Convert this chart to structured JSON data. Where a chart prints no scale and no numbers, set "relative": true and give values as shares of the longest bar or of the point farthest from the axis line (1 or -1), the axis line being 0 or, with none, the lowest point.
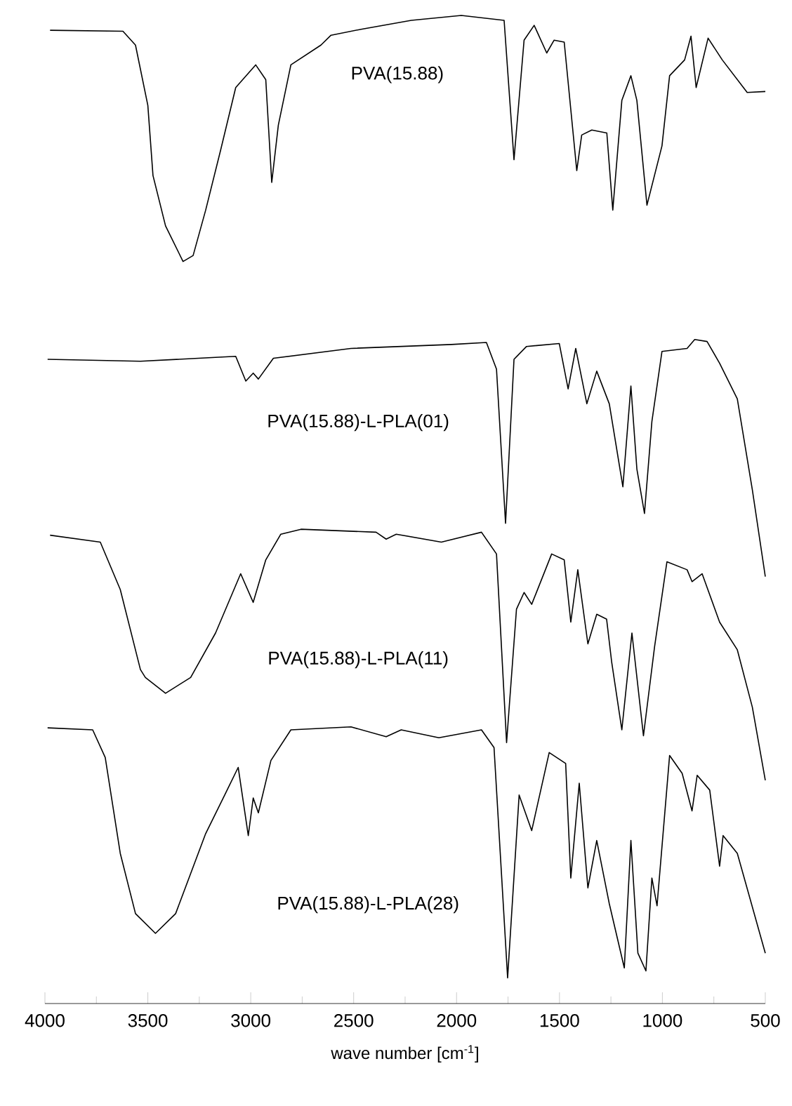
{
  "chart_data": {
    "type": "line",
    "relative": true,
    "xlabel": "wave number [cm$^{-1}$]",
    "xlim": [
      4000,
      500
    ],
    "xticks": [
      4000,
      3500,
      3000,
      2500,
      2000,
      1500,
      1000,
      500
    ],
    "series": [
      {
        "name": "PVA(15.88)",
        "color": "#000000",
        "x": [
          3975,
          3621,
          3560,
          3500,
          3475,
          3414,
          3329,
          3280,
          3219,
          3146,
          3073,
          2976,
          2927,
          2898,
          2866,
          2805,
          2659,
          2610,
          2464,
          2220,
          1977,
          1769,
          1721,
          1672,
          1623,
          1562,
          1526,
          1477,
          1416,
          1392,
          1343,
          1270,
          1241,
          1197,
          1153,
          1124,
          1075,
          1002,
          965,
          892,
          861,
          836,
          778,
          709,
          588,
          500
        ],
        "values": [
          0.985,
          0.984,
          0.97,
          0.909,
          0.838,
          0.787,
          0.751,
          0.757,
          0.803,
          0.864,
          0.927,
          0.95,
          0.935,
          0.831,
          0.889,
          0.95,
          0.97,
          0.98,
          0.986,
          0.995,
          1.0,
          0.995,
          0.854,
          0.975,
          0.99,
          0.962,
          0.975,
          0.973,
          0.843,
          0.879,
          0.884,
          0.881,
          0.803,
          0.914,
          0.939,
          0.914,
          0.808,
          0.868,
          0.939,
          0.955,
          0.979,
          0.927,
          0.977,
          0.955,
          0.922,
          0.923
        ]
      },
      {
        "name": "PVA(15.88)-L-PLA(01)",
        "color": "#000000",
        "x": [
          3987,
          3536,
          3073,
          3024,
          2988,
          2963,
          2890,
          2513,
          2025,
          1855,
          1806,
          1762,
          1721,
          1660,
          1501,
          1458,
          1421,
          1367,
          1319,
          1258,
          1192,
          1153,
          1124,
          1087,
          1051,
          1002,
          880,
          843,
          783,
          722,
          636,
          563,
          500
        ],
        "values": [
          0.652,
          0.65,
          0.655,
          0.63,
          0.638,
          0.632,
          0.653,
          0.663,
          0.667,
          0.669,
          0.642,
          0.486,
          0.652,
          0.665,
          0.668,
          0.622,
          0.663,
          0.607,
          0.64,
          0.607,
          0.523,
          0.625,
          0.541,
          0.496,
          0.589,
          0.66,
          0.663,
          0.672,
          0.67,
          0.648,
          0.612,
          0.52,
          0.432
        ]
      },
      {
        "name": "PVA(15.88)-L-PLA(11)",
        "color": "#000000",
        "x": [
          3975,
          3731,
          3634,
          3536,
          3512,
          3414,
          3292,
          3171,
          3049,
          2988,
          2927,
          2854,
          2756,
          2391,
          2342,
          2293,
          2074,
          1879,
          1806,
          1757,
          1709,
          1672,
          1635,
          1538,
          1477,
          1445,
          1411,
          1362,
          1319,
          1271,
          1246,
          1197,
          1148,
          1092,
          1038,
          978,
          880,
          856,
          807,
          722,
          636,
          563,
          500
        ],
        "values": [
          0.474,
          0.467,
          0.419,
          0.338,
          0.33,
          0.314,
          0.33,
          0.375,
          0.435,
          0.406,
          0.449,
          0.475,
          0.48,
          0.477,
          0.47,
          0.475,
          0.467,
          0.477,
          0.455,
          0.264,
          0.399,
          0.416,
          0.404,
          0.455,
          0.449,
          0.386,
          0.439,
          0.364,
          0.394,
          0.389,
          0.345,
          0.277,
          0.375,
          0.271,
          0.361,
          0.447,
          0.439,
          0.427,
          0.435,
          0.386,
          0.358,
          0.3,
          0.226
        ]
      },
      {
        "name": "PVA(15.88)-L-PLA(28)",
        "color": "#000000",
        "x": [
          3987,
          3768,
          3707,
          3634,
          3560,
          3463,
          3365,
          3219,
          3122,
          3061,
          3012,
          2988,
          2963,
          2902,
          2805,
          2513,
          2342,
          2269,
          2086,
          1879,
          1818,
          1752,
          1696,
          1635,
          1550,
          1470,
          1445,
          1404,
          1362,
          1319,
          1258,
          1185,
          1153,
          1119,
          1080,
          1051,
          1026,
          965,
          904,
          856,
          831,
          770,
          722,
          705,
          636,
          500
        ],
        "values": [
          0.279,
          0.277,
          0.249,
          0.152,
          0.091,
          0.071,
          0.091,
          0.172,
          0.213,
          0.239,
          0.17,
          0.208,
          0.193,
          0.246,
          0.277,
          0.28,
          0.27,
          0.277,
          0.269,
          0.277,
          0.259,
          0.026,
          0.211,
          0.175,
          0.254,
          0.243,
          0.127,
          0.223,
          0.117,
          0.165,
          0.101,
          0.036,
          0.165,
          0.051,
          0.033,
          0.127,
          0.099,
          0.251,
          0.233,
          0.195,
          0.231,
          0.216,
          0.139,
          0.17,
          0.152,
          0.051
        ]
      }
    ]
  }
}
